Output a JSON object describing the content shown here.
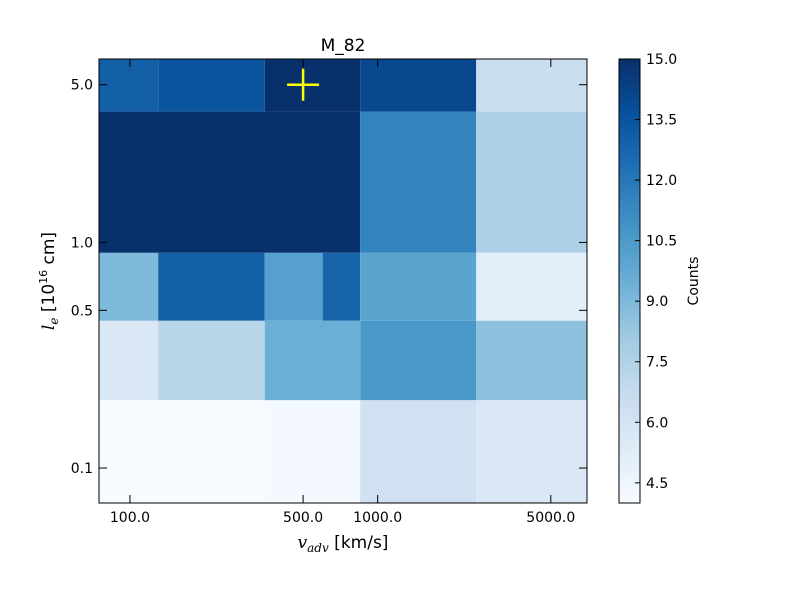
{
  "chart_data": {
    "type": "heatmap",
    "title": "M_82",
    "xlabel": {
      "symbol": "v",
      "subscript": "adv",
      "unit": " [km/s]"
    },
    "ylabel": {
      "symbol": "l",
      "subscript": "e",
      "prefix": " [10",
      "exponent": "16",
      "suffix": " cm]"
    },
    "x_scale": "log",
    "y_scale": "log",
    "x_edges": [
      75,
      130,
      350,
      850,
      2500,
      7000
    ],
    "y_edges": [
      0.07,
      0.2,
      0.45,
      0.9,
      3.8,
      6.5
    ],
    "x_ticks": [
      {
        "value": 100,
        "label": "100.0"
      },
      {
        "value": 500,
        "label": "500.0"
      },
      {
        "value": 1000,
        "label": "1000.0"
      },
      {
        "value": 5000,
        "label": "5000.0"
      }
    ],
    "y_ticks": [
      {
        "value": 0.1,
        "label": "0.1"
      },
      {
        "value": 0.5,
        "label": "0.5"
      },
      {
        "value": 1.0,
        "label": "1.0"
      },
      {
        "value": 5.0,
        "label": "5.0"
      }
    ],
    "cells": [
      {
        "x": [
          75,
          350
        ],
        "y": [
          0.07,
          0.2
        ],
        "count": 4.0
      },
      {
        "x": [
          350,
          850
        ],
        "y": [
          0.07,
          0.2
        ],
        "count": 4.2
      },
      {
        "x": [
          850,
          2500
        ],
        "y": [
          0.07,
          0.2
        ],
        "count": 6.2
      },
      {
        "x": [
          2500,
          7000
        ],
        "y": [
          0.07,
          0.2
        ],
        "count": 5.6
      },
      {
        "x": [
          75,
          130
        ],
        "y": [
          0.2,
          0.45
        ],
        "count": 5.6
      },
      {
        "x": [
          130,
          350
        ],
        "y": [
          0.2,
          0.45
        ],
        "count": 7.2
      },
      {
        "x": [
          350,
          850
        ],
        "y": [
          0.2,
          0.45
        ],
        "count": 9.5
      },
      {
        "x": [
          850,
          2500
        ],
        "y": [
          0.2,
          0.45
        ],
        "count": 10.6
      },
      {
        "x": [
          2500,
          7000
        ],
        "y": [
          0.2,
          0.45
        ],
        "count": 8.6
      },
      {
        "x": [
          75,
          130
        ],
        "y": [
          0.45,
          0.9
        ],
        "count": 9.0
      },
      {
        "x": [
          130,
          350
        ],
        "y": [
          0.45,
          0.9
        ],
        "count": 13.0
      },
      {
        "x": [
          350,
          600
        ],
        "y": [
          0.45,
          0.9
        ],
        "count": 10.2
      },
      {
        "x": [
          600,
          850
        ],
        "y": [
          0.45,
          0.9
        ],
        "count": 12.8
      },
      {
        "x": [
          850,
          2500
        ],
        "y": [
          0.45,
          0.9
        ],
        "count": 10.0
      },
      {
        "x": [
          2500,
          7000
        ],
        "y": [
          0.45,
          0.9
        ],
        "count": 5.2
      },
      {
        "x": [
          75,
          850
        ],
        "y": [
          0.9,
          3.8
        ],
        "count": 15.0
      },
      {
        "x": [
          850,
          2500
        ],
        "y": [
          0.9,
          3.8
        ],
        "count": 11.5
      },
      {
        "x": [
          2500,
          7000
        ],
        "y": [
          0.9,
          3.8
        ],
        "count": 7.6
      },
      {
        "x": [
          75,
          130
        ],
        "y": [
          3.8,
          6.5
        ],
        "count": 13.0
      },
      {
        "x": [
          130,
          350
        ],
        "y": [
          3.8,
          6.5
        ],
        "count": 13.5
      },
      {
        "x": [
          350,
          850
        ],
        "y": [
          3.8,
          6.5
        ],
        "count": 15.0
      },
      {
        "x": [
          850,
          2500
        ],
        "y": [
          3.8,
          6.5
        ],
        "count": 14.0
      },
      {
        "x": [
          2500,
          7000
        ],
        "y": [
          3.8,
          6.5
        ],
        "count": 6.5
      }
    ],
    "marker": {
      "x": 500,
      "y": 5.0,
      "shape": "plus",
      "color": "#ffff00"
    },
    "colorbar": {
      "label": "Counts",
      "range": [
        4.0,
        15.0
      ],
      "ticks": [
        {
          "value": 4.5,
          "label": "4.5"
        },
        {
          "value": 6.0,
          "label": "6.0"
        },
        {
          "value": 7.5,
          "label": "7.5"
        },
        {
          "value": 9.0,
          "label": "9.0"
        },
        {
          "value": 10.5,
          "label": "10.5"
        },
        {
          "value": 12.0,
          "label": "12.0"
        },
        {
          "value": 13.5,
          "label": "13.5"
        },
        {
          "value": 15.0,
          "label": "15.0"
        }
      ],
      "colormap": "Blues",
      "colors": [
        "#f7fbff",
        "#deebf7",
        "#c6dbef",
        "#9ecae1",
        "#6baed6",
        "#4292c6",
        "#2171b5",
        "#08519c",
        "#08306b"
      ]
    }
  }
}
